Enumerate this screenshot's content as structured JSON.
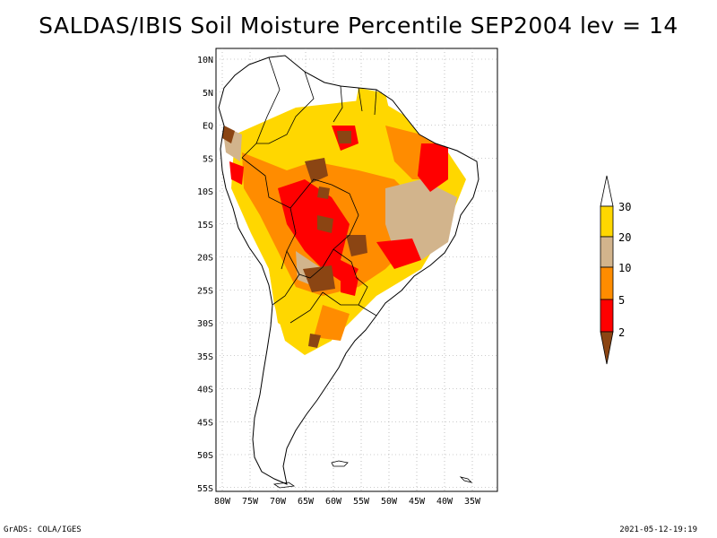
{
  "title": "SALDAS/IBIS Soil Moisture Percentile SEP2004 lev = 14",
  "footer": {
    "left": "GrADS: COLA/IGES",
    "right": "2021-05-12-19:19"
  },
  "axes": {
    "lat_ticks": [
      "10N",
      "5N",
      "EQ",
      "5S",
      "10S",
      "15S",
      "20S",
      "25S",
      "30S",
      "35S",
      "40S",
      "45S",
      "50S",
      "55S"
    ],
    "lon_ticks": [
      "80W",
      "75W",
      "70W",
      "65W",
      "60W",
      "55W",
      "50W",
      "45W",
      "40W",
      "35W"
    ]
  },
  "legend": {
    "labels": [
      "2",
      "5",
      "10",
      "20",
      "30"
    ],
    "colors": {
      "below_2": "#8b4513",
      "2_5": "#ff0000",
      "5_10": "#ff8c00",
      "10_20": "#d2b48c",
      "20_30": "#ffd700",
      "above_30": "#ffffff"
    }
  }
}
